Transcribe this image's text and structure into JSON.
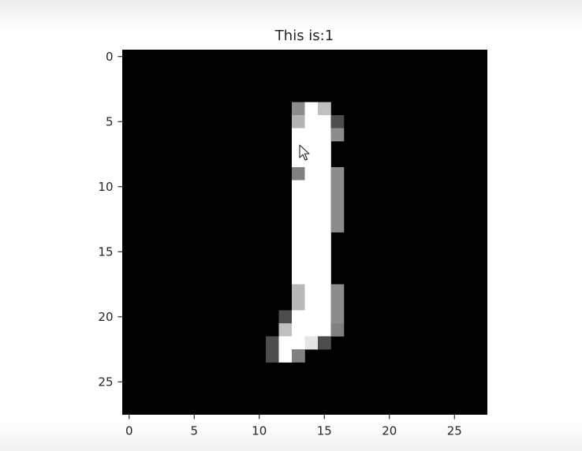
{
  "chart_data": {
    "type": "heatmap",
    "title": "This is:1",
    "xlabel": "",
    "ylabel": "",
    "rows": 28,
    "cols": 28,
    "xlim": [
      -0.5,
      27.5
    ],
    "ylim": [
      27.5,
      -0.5
    ],
    "xticks": [
      0,
      5,
      10,
      15,
      20,
      25
    ],
    "yticks": [
      0,
      5,
      10,
      15,
      20,
      25
    ],
    "xtick_labels": [
      "0",
      "5",
      "10",
      "15",
      "20",
      "25"
    ],
    "ytick_labels": [
      "0",
      "5",
      "10",
      "15",
      "20",
      "25"
    ],
    "colormap": "gray",
    "background_color": "#000000",
    "pixels": [
      {
        "row": 4,
        "col": 13,
        "value": 0.55
      },
      {
        "row": 4,
        "col": 14,
        "value": 1.0
      },
      {
        "row": 4,
        "col": 15,
        "value": 0.75
      },
      {
        "row": 5,
        "col": 13,
        "value": 0.7
      },
      {
        "row": 5,
        "col": 14,
        "value": 1.0
      },
      {
        "row": 5,
        "col": 15,
        "value": 1.0
      },
      {
        "row": 5,
        "col": 16,
        "value": 0.3
      },
      {
        "row": 6,
        "col": 13,
        "value": 1.0
      },
      {
        "row": 6,
        "col": 14,
        "value": 1.0
      },
      {
        "row": 6,
        "col": 15,
        "value": 1.0
      },
      {
        "row": 6,
        "col": 16,
        "value": 0.55
      },
      {
        "row": 7,
        "col": 13,
        "value": 1.0
      },
      {
        "row": 7,
        "col": 14,
        "value": 1.0
      },
      {
        "row": 7,
        "col": 15,
        "value": 1.0
      },
      {
        "row": 8,
        "col": 13,
        "value": 1.0
      },
      {
        "row": 8,
        "col": 14,
        "value": 1.0
      },
      {
        "row": 8,
        "col": 15,
        "value": 1.0
      },
      {
        "row": 9,
        "col": 13,
        "value": 0.5
      },
      {
        "row": 9,
        "col": 14,
        "value": 1.0
      },
      {
        "row": 9,
        "col": 15,
        "value": 1.0
      },
      {
        "row": 9,
        "col": 16,
        "value": 0.55
      },
      {
        "row": 10,
        "col": 13,
        "value": 1.0
      },
      {
        "row": 10,
        "col": 14,
        "value": 1.0
      },
      {
        "row": 10,
        "col": 15,
        "value": 1.0
      },
      {
        "row": 10,
        "col": 16,
        "value": 0.55
      },
      {
        "row": 11,
        "col": 13,
        "value": 1.0
      },
      {
        "row": 11,
        "col": 14,
        "value": 1.0
      },
      {
        "row": 11,
        "col": 15,
        "value": 1.0
      },
      {
        "row": 11,
        "col": 16,
        "value": 0.55
      },
      {
        "row": 12,
        "col": 13,
        "value": 1.0
      },
      {
        "row": 12,
        "col": 14,
        "value": 1.0
      },
      {
        "row": 12,
        "col": 15,
        "value": 1.0
      },
      {
        "row": 12,
        "col": 16,
        "value": 0.55
      },
      {
        "row": 13,
        "col": 13,
        "value": 1.0
      },
      {
        "row": 13,
        "col": 14,
        "value": 1.0
      },
      {
        "row": 13,
        "col": 15,
        "value": 1.0
      },
      {
        "row": 13,
        "col": 16,
        "value": 0.55
      },
      {
        "row": 14,
        "col": 13,
        "value": 1.0
      },
      {
        "row": 14,
        "col": 14,
        "value": 1.0
      },
      {
        "row": 14,
        "col": 15,
        "value": 1.0
      },
      {
        "row": 15,
        "col": 13,
        "value": 1.0
      },
      {
        "row": 15,
        "col": 14,
        "value": 1.0
      },
      {
        "row": 15,
        "col": 15,
        "value": 1.0
      },
      {
        "row": 16,
        "col": 13,
        "value": 1.0
      },
      {
        "row": 16,
        "col": 14,
        "value": 1.0
      },
      {
        "row": 16,
        "col": 15,
        "value": 1.0
      },
      {
        "row": 17,
        "col": 13,
        "value": 1.0
      },
      {
        "row": 17,
        "col": 14,
        "value": 1.0
      },
      {
        "row": 17,
        "col": 15,
        "value": 1.0
      },
      {
        "row": 18,
        "col": 13,
        "value": 0.72
      },
      {
        "row": 18,
        "col": 14,
        "value": 1.0
      },
      {
        "row": 18,
        "col": 15,
        "value": 1.0
      },
      {
        "row": 18,
        "col": 16,
        "value": 0.55
      },
      {
        "row": 19,
        "col": 13,
        "value": 0.72
      },
      {
        "row": 19,
        "col": 14,
        "value": 1.0
      },
      {
        "row": 19,
        "col": 15,
        "value": 1.0
      },
      {
        "row": 19,
        "col": 16,
        "value": 0.55
      },
      {
        "row": 20,
        "col": 12,
        "value": 0.3
      },
      {
        "row": 20,
        "col": 13,
        "value": 1.0
      },
      {
        "row": 20,
        "col": 14,
        "value": 1.0
      },
      {
        "row": 20,
        "col": 15,
        "value": 1.0
      },
      {
        "row": 20,
        "col": 16,
        "value": 0.55
      },
      {
        "row": 21,
        "col": 12,
        "value": 0.75
      },
      {
        "row": 21,
        "col": 13,
        "value": 1.0
      },
      {
        "row": 21,
        "col": 14,
        "value": 1.0
      },
      {
        "row": 21,
        "col": 15,
        "value": 1.0
      },
      {
        "row": 21,
        "col": 16,
        "value": 0.5
      },
      {
        "row": 22,
        "col": 11,
        "value": 0.3
      },
      {
        "row": 22,
        "col": 12,
        "value": 1.0
      },
      {
        "row": 22,
        "col": 13,
        "value": 1.0
      },
      {
        "row": 22,
        "col": 14,
        "value": 0.9
      },
      {
        "row": 22,
        "col": 15,
        "value": 0.3
      },
      {
        "row": 23,
        "col": 11,
        "value": 0.3
      },
      {
        "row": 23,
        "col": 12,
        "value": 1.0
      },
      {
        "row": 23,
        "col": 13,
        "value": 0.5
      }
    ]
  }
}
